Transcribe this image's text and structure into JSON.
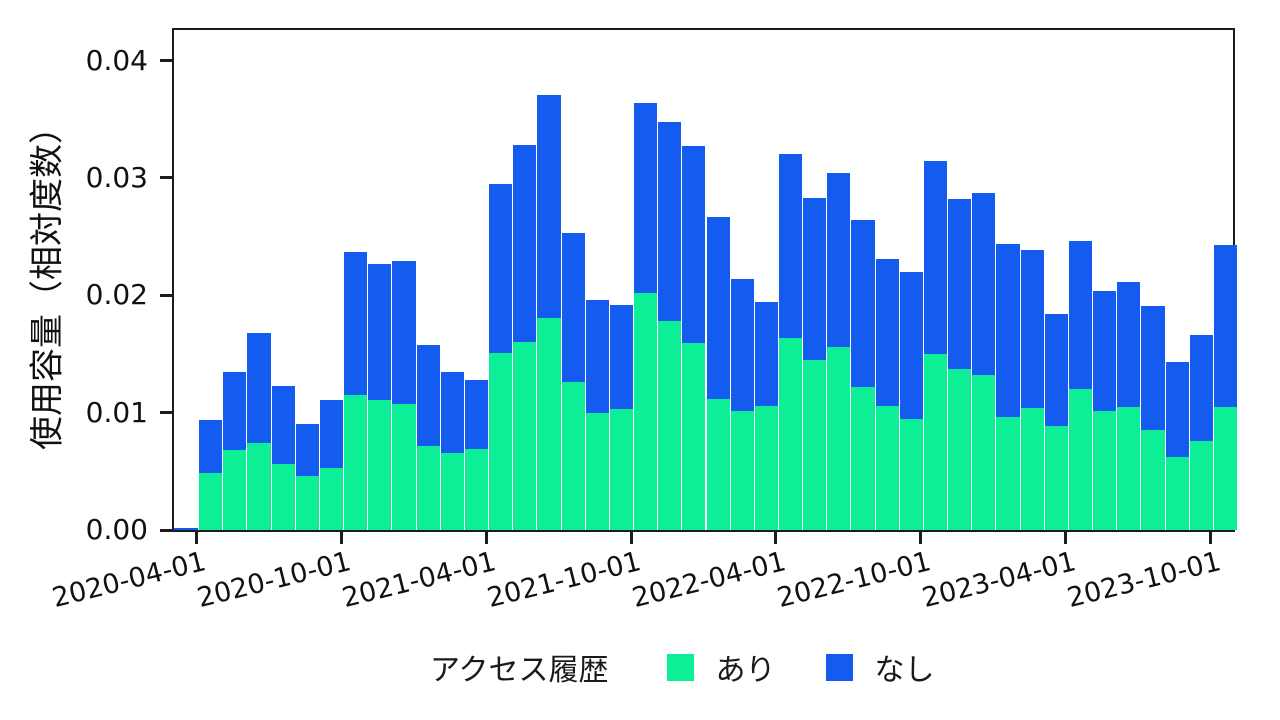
{
  "colors": {
    "background": "#ffffff",
    "spine": "#1c1c1c",
    "bar_edge": "rgba(255,255,255,0.55)",
    "text": "#111111"
  },
  "chart_data": {
    "type": "bar",
    "stacked": true,
    "title": "",
    "xlabel": "",
    "ylabel": "使用容量（相対度数）",
    "ylim": [
      0,
      0.0426
    ],
    "grid": false,
    "legend": {
      "title": "アクセス履歴",
      "position": "bottom-center"
    },
    "y_tick_labels": [
      "0.00",
      "0.01",
      "0.02",
      "0.03",
      "0.04"
    ],
    "y_tick_values": [
      0,
      0.01,
      0.02,
      0.03,
      0.04
    ],
    "x_tick_labels": [
      "2020-04-01",
      "2020-10-01",
      "2021-04-01",
      "2021-10-01",
      "2022-04-01",
      "2022-10-01",
      "2023-04-01",
      "2023-10-01"
    ],
    "x_tick_category_index": [
      1,
      7,
      13,
      19,
      25,
      31,
      37,
      43
    ],
    "categories": [
      "2020-03",
      "2020-04",
      "2020-05",
      "2020-06",
      "2020-07",
      "2020-08",
      "2020-09",
      "2020-10",
      "2020-11",
      "2020-12",
      "2021-01",
      "2021-02",
      "2021-03",
      "2021-04",
      "2021-05",
      "2021-06",
      "2021-07",
      "2021-08",
      "2021-09",
      "2021-10",
      "2021-11",
      "2021-12",
      "2022-01",
      "2022-02",
      "2022-03",
      "2022-04",
      "2022-05",
      "2022-06",
      "2022-07",
      "2022-08",
      "2022-09",
      "2022-10",
      "2022-11",
      "2022-12",
      "2023-01",
      "2023-02",
      "2023-03",
      "2023-04",
      "2023-05",
      "2023-06",
      "2023-07",
      "2023-08",
      "2023-09",
      "2023-10"
    ],
    "series": [
      {
        "name": "あり",
        "color": "#0CEF96",
        "values": [
          0.0,
          0.0049,
          0.0068,
          0.0074,
          0.0056,
          0.0046,
          0.0053,
          0.0115,
          0.0111,
          0.0107,
          0.0072,
          0.0066,
          0.0069,
          0.0151,
          0.016,
          0.0181,
          0.0126,
          0.01,
          0.0103,
          0.0202,
          0.0178,
          0.0159,
          0.0112,
          0.0101,
          0.0106,
          0.0164,
          0.0145,
          0.0156,
          0.0122,
          0.0106,
          0.0095,
          0.015,
          0.0137,
          0.0132,
          0.0096,
          0.0104,
          0.0089,
          0.012,
          0.0101,
          0.0105,
          0.0085,
          0.0062,
          0.0076,
          0.0105
        ]
      },
      {
        "name": "なし",
        "color": "#145CF0",
        "values": [
          0.0002,
          0.0045,
          0.0067,
          0.0094,
          0.0067,
          0.0044,
          0.0058,
          0.0122,
          0.0116,
          0.0122,
          0.0086,
          0.0069,
          0.0059,
          0.0144,
          0.0168,
          0.019,
          0.0127,
          0.0096,
          0.0089,
          0.0162,
          0.017,
          0.0168,
          0.0155,
          0.0113,
          0.0088,
          0.0156,
          0.0138,
          0.0148,
          0.0142,
          0.0125,
          0.0125,
          0.0164,
          0.0145,
          0.0155,
          0.0148,
          0.0135,
          0.0095,
          0.0126,
          0.0103,
          0.0106,
          0.0106,
          0.0081,
          0.009,
          0.0138
        ]
      }
    ]
  }
}
